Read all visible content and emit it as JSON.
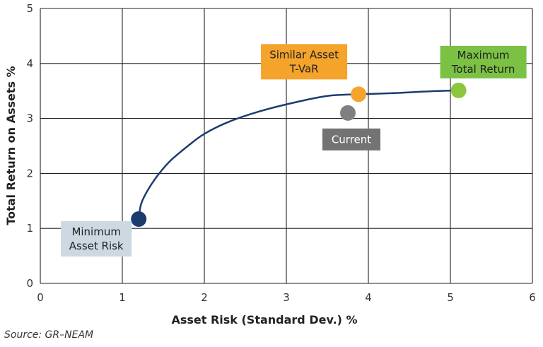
{
  "chart_data": {
    "type": "line",
    "title": "",
    "xlabel": "Asset Risk (Standard Dev.) %",
    "ylabel": "Total Return on Assets %",
    "xlim": [
      0,
      6
    ],
    "ylim": [
      0,
      5
    ],
    "x_ticks": [
      "0",
      "1",
      "2",
      "3",
      "4",
      "5",
      "6"
    ],
    "y_ticks": [
      "0",
      "1",
      "2",
      "3",
      "4",
      "5"
    ],
    "grid": true,
    "series": [
      {
        "color": "#1d3c6e",
        "points": [
          [
            1.2,
            1.17
          ],
          [
            1.23,
            1.45
          ],
          [
            1.32,
            1.72
          ],
          [
            1.45,
            2.0
          ],
          [
            1.6,
            2.25
          ],
          [
            1.8,
            2.5
          ],
          [
            2.0,
            2.72
          ],
          [
            2.3,
            2.94
          ],
          [
            2.7,
            3.14
          ],
          [
            3.1,
            3.29
          ],
          [
            3.5,
            3.41
          ],
          [
            3.88,
            3.44
          ],
          [
            4.3,
            3.46
          ],
          [
            4.7,
            3.49
          ],
          [
            5.1,
            3.51
          ]
        ]
      }
    ],
    "annotations": [
      {
        "text": [
          "Minimum",
          "Asset Risk"
        ],
        "x": 1.2,
        "y": 1.17,
        "marker_color": "#1d3c6e",
        "box_color": "#ccd9e3",
        "text_color": "#222222"
      },
      {
        "text": [
          "Similar Asset",
          "T-VaR"
        ],
        "x": 3.88,
        "y": 3.44,
        "marker_color": "#f4a32b",
        "box_color": "#f4a32b",
        "text_color": "#222222"
      },
      {
        "text": [
          "Current"
        ],
        "x": 3.75,
        "y": 3.1,
        "marker_color": "#808080",
        "box_color": "#737373",
        "text_color": "#ffffff"
      },
      {
        "text": [
          "Maximum",
          "Total Return"
        ],
        "x": 5.1,
        "y": 3.51,
        "marker_color": "#8cc63f",
        "box_color": "#7bc143",
        "text_color": "#222222"
      }
    ]
  },
  "source": "Source: GR–NEAM"
}
